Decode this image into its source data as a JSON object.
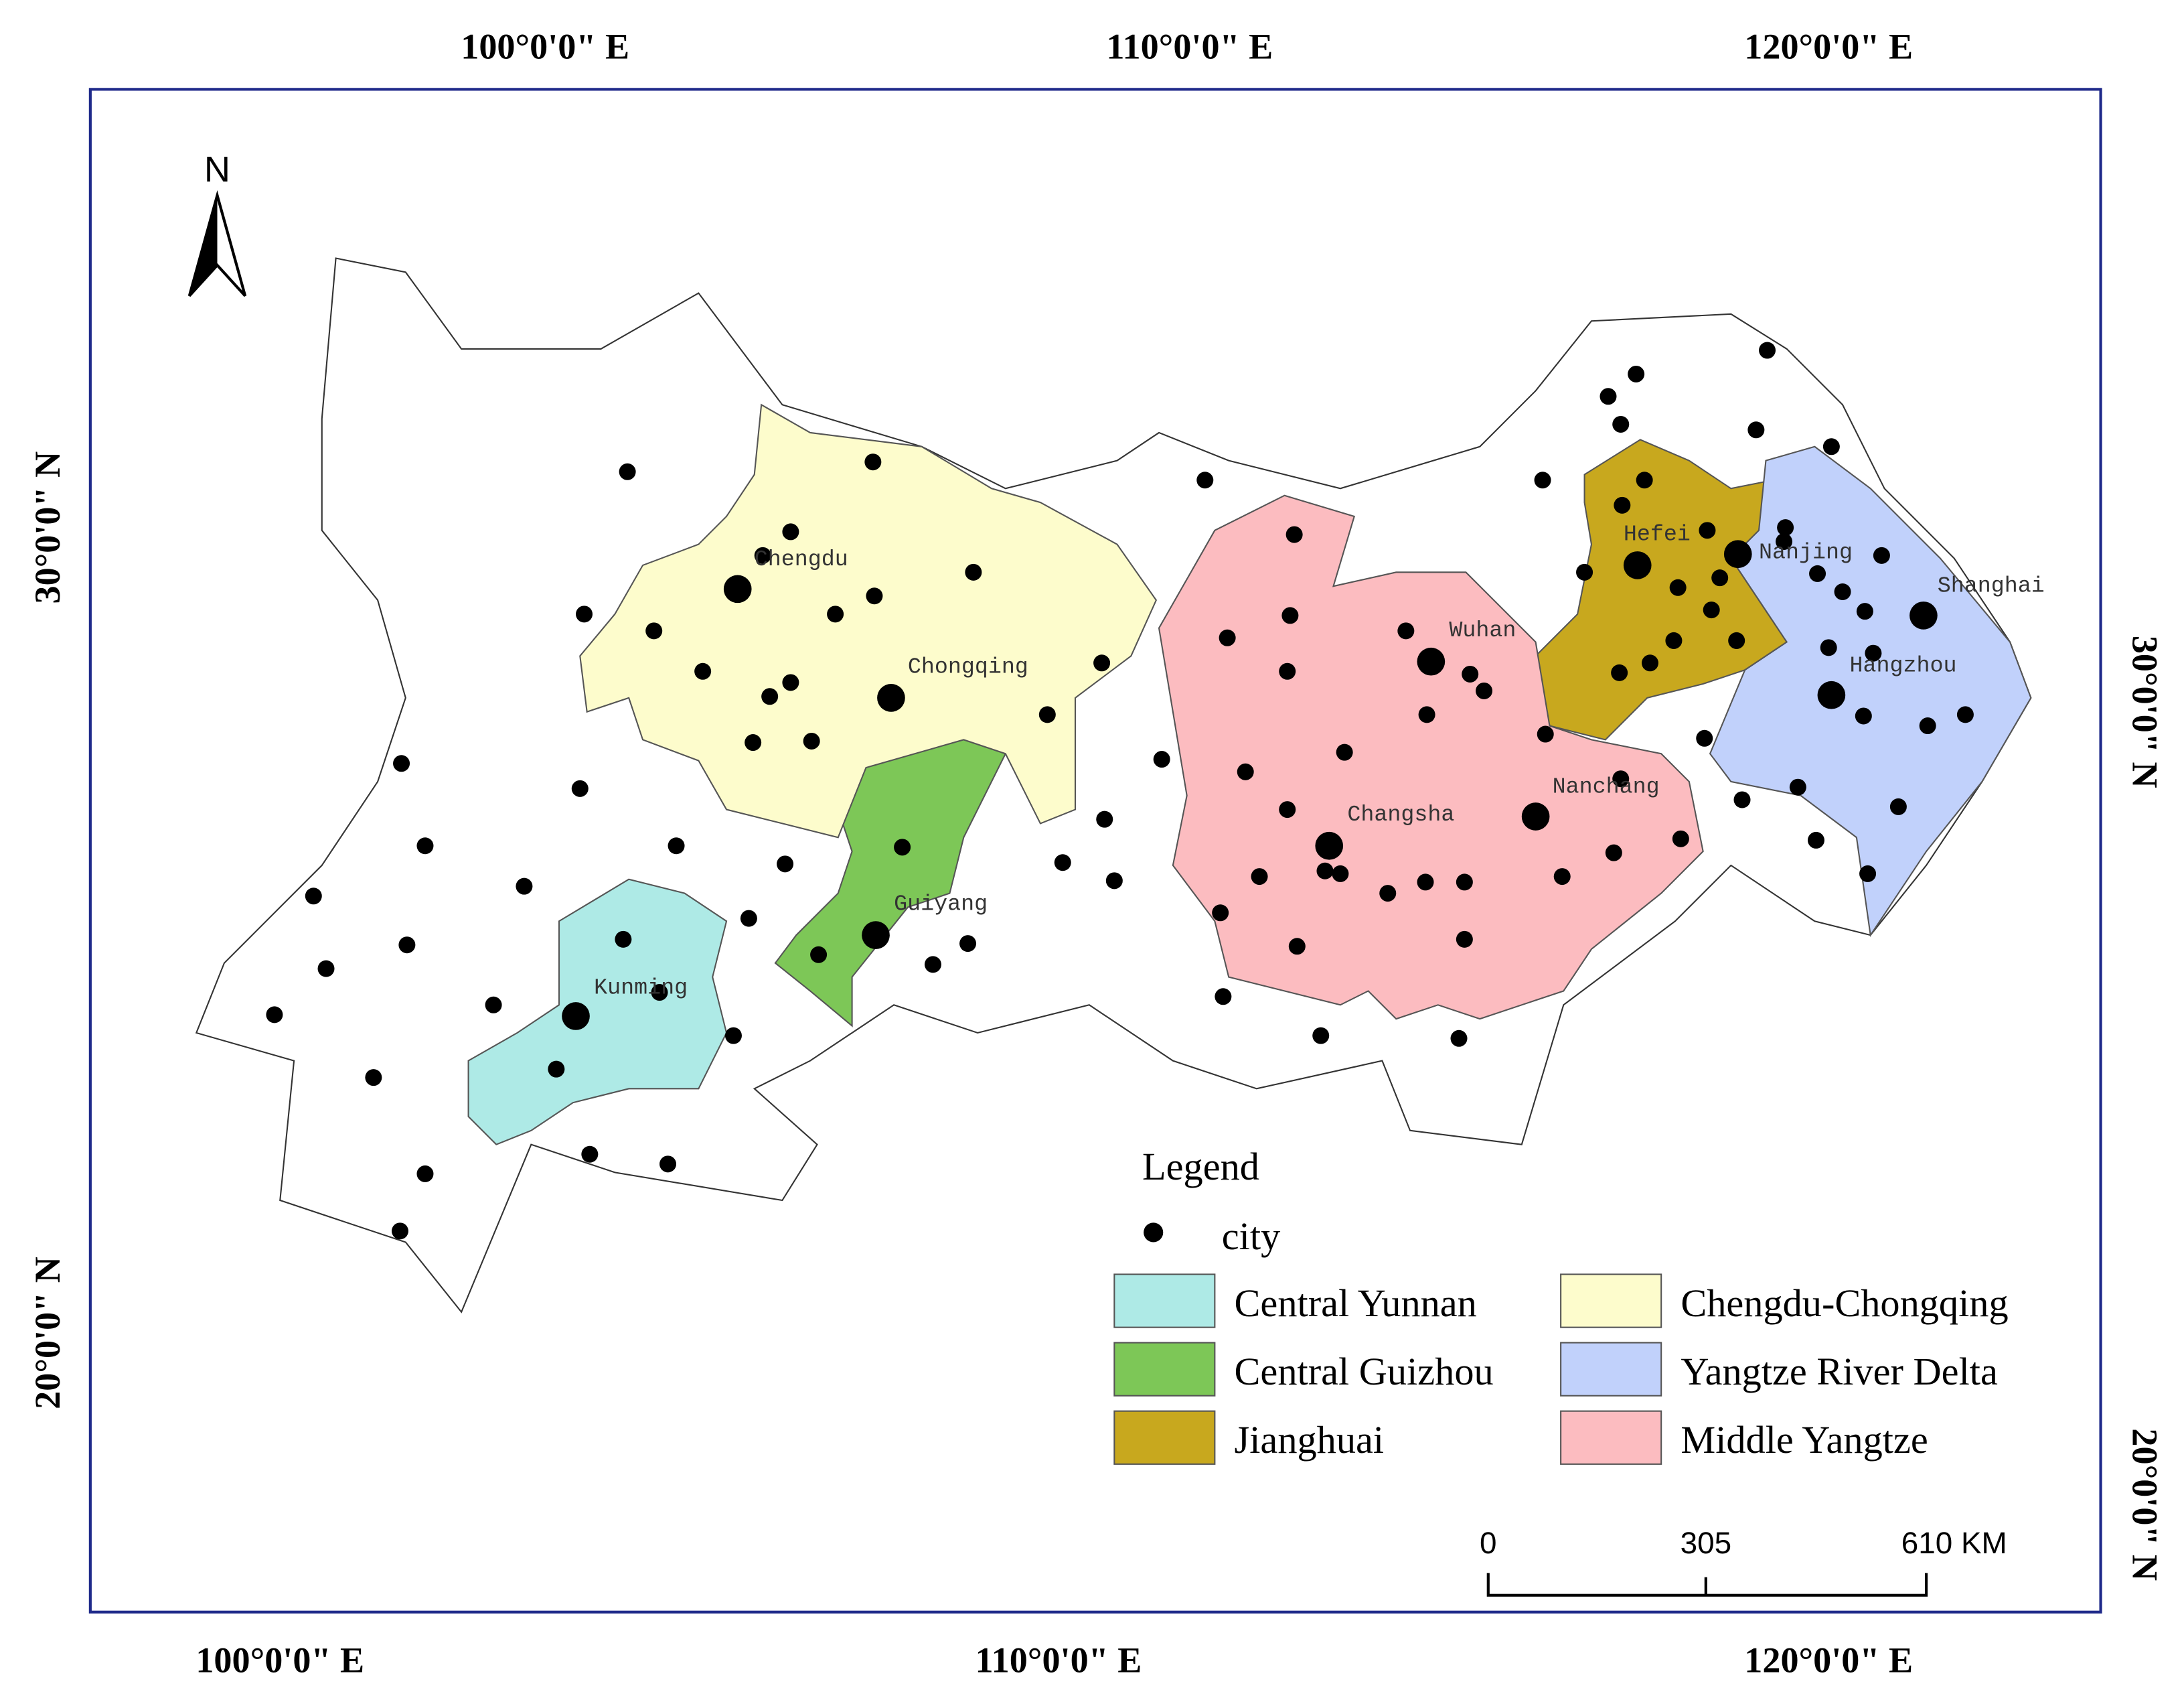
{
  "map": {
    "north_arrow": "N",
    "top_labels": [
      "100°0'0\" E",
      "110°0'0\" E",
      "120°0'0\" E"
    ],
    "bottom_labels": [
      "100°0'0\" E",
      "110°0'0\" E",
      "120°0'0\" E"
    ],
    "left_labels": [
      "30°0'0\" N",
      "20°0'0\" N"
    ],
    "right_labels": [
      "30°0'0\" N",
      "20°0'0\" N"
    ],
    "cities": [
      "Chengdu",
      "Chongqing",
      "Guiyang",
      "Kunming",
      "Wuhan",
      "Changsha",
      "Nanchang",
      "Hefei",
      "Nanjing",
      "Shanghai",
      "Hangzhou"
    ],
    "legend": {
      "title": "Legend",
      "city": "city",
      "regions": [
        {
          "name": "Central Yunnan",
          "color": "#aeeae6"
        },
        {
          "name": "Central Guizhou",
          "color": "#7dc757"
        },
        {
          "name": "Jianghuai",
          "color": "#c8a81e"
        },
        {
          "name": "Chengdu-Chongqing",
          "color": "#fdfccc"
        },
        {
          "name": "Yangtze River Delta",
          "color": "#c1d1fb"
        },
        {
          "name": "Middle Yangtze",
          "color": "#fcbcc0"
        }
      ]
    },
    "scale": [
      "0",
      "305",
      "610 KM"
    ]
  }
}
